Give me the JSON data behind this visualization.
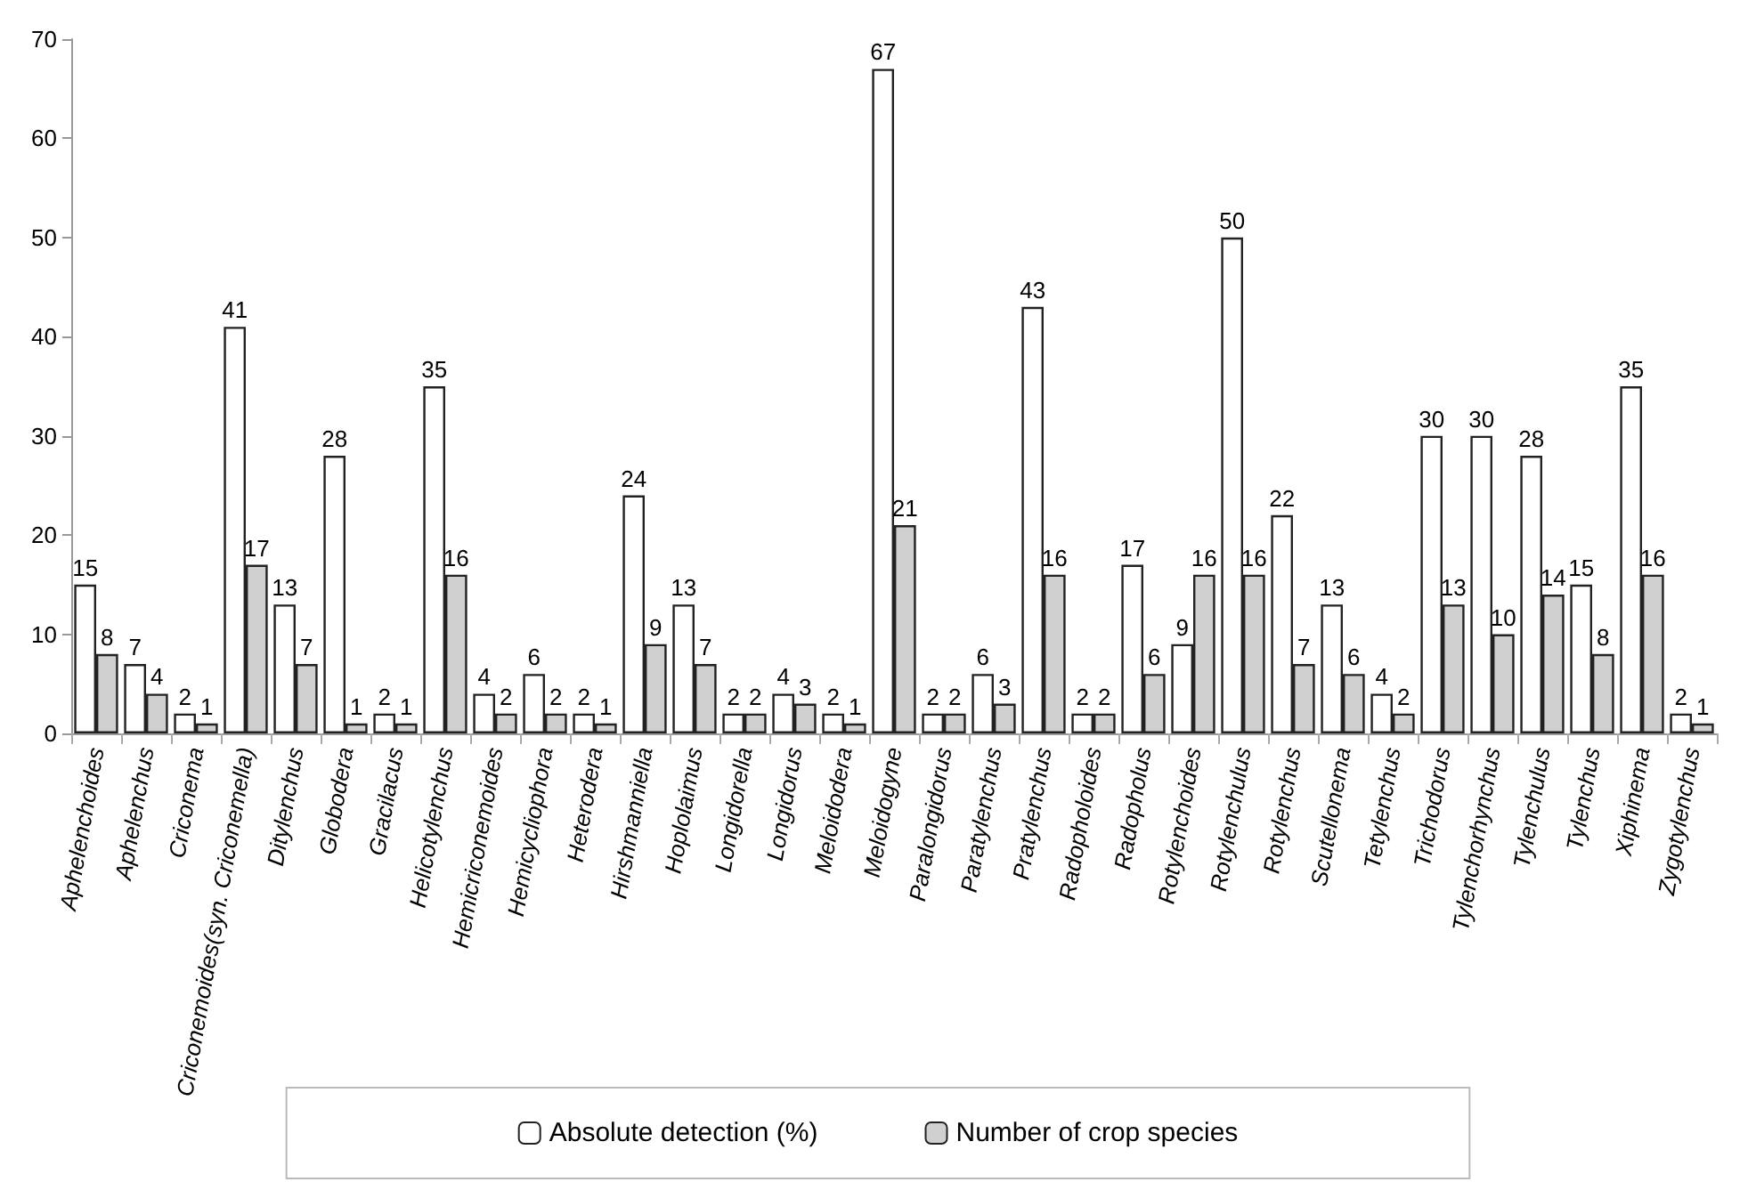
{
  "chart_data": {
    "type": "bar",
    "categories": [
      "Aphelenchoides",
      "Aphelenchus",
      "Criconema",
      "Criconemoides(syn. Criconemella)",
      "Ditylenchus",
      "Globodera",
      "Gracilacus",
      "Helicotylenchus",
      "Hemicriconemoides",
      "Hemicycliophora",
      "Heterodera",
      "Hirshmanniella",
      "Hoplolaimus",
      "Longidorella",
      "Longidorus",
      "Meloidodera",
      "Meloidogyne",
      "Paralongidorus",
      "Paratylenchus",
      "Pratylenchus",
      "Radopholoides",
      "Radopholus",
      "Rotylenchoides",
      "Rotylenchulus",
      "Rotylenchus",
      "Scutellonema",
      "Tetylenchus",
      "Trichodorus",
      "Tylenchorhynchus",
      "Tylenchulus",
      "Tylenchus",
      "Xiphinema",
      "Zygotylenchus"
    ],
    "series": [
      {
        "name": "Absolute detection (%)",
        "color": "#ffffff",
        "values": [
          15,
          7,
          2,
          41,
          13,
          28,
          2,
          35,
          4,
          6,
          2,
          24,
          13,
          2,
          4,
          2,
          67,
          2,
          6,
          43,
          2,
          17,
          9,
          50,
          22,
          13,
          4,
          30,
          30,
          28,
          15,
          35,
          2
        ]
      },
      {
        "name": "Number of crop species",
        "color": "#d0d0d0",
        "values": [
          8,
          4,
          1,
          17,
          7,
          1,
          1,
          16,
          2,
          2,
          1,
          9,
          7,
          2,
          3,
          1,
          21,
          2,
          3,
          16,
          2,
          6,
          16,
          16,
          7,
          6,
          2,
          13,
          10,
          14,
          8,
          16,
          1
        ]
      }
    ],
    "ylim": [
      0,
      70
    ],
    "yticks": [
      0,
      10,
      20,
      30,
      40,
      50,
      60,
      70
    ],
    "grid": false,
    "legend": "bottom",
    "data_labels": true
  }
}
